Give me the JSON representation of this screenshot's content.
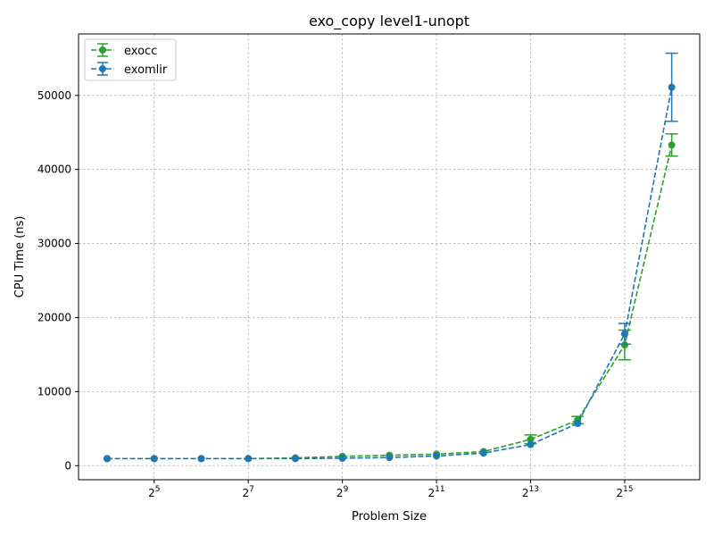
{
  "chart_data": {
    "type": "line",
    "title": "exo_copy level1-unopt",
    "xlabel": "Problem Size",
    "ylabel": "CPU Time (ns)",
    "x_scale": "log2",
    "x": [
      16,
      32,
      64,
      128,
      256,
      512,
      1024,
      2048,
      4096,
      8192,
      16384,
      32768,
      65536
    ],
    "x_ticks": [
      {
        "value": 32,
        "base": "2",
        "exp": "5"
      },
      {
        "value": 128,
        "base": "2",
        "exp": "7"
      },
      {
        "value": 512,
        "base": "2",
        "exp": "9"
      },
      {
        "value": 2048,
        "base": "2",
        "exp": "11"
      },
      {
        "value": 8192,
        "base": "2",
        "exp": "13"
      },
      {
        "value": 32768,
        "base": "2",
        "exp": "15"
      }
    ],
    "xlim": [
      10.5,
      99000
    ],
    "ylim": [
      -1900,
      58300
    ],
    "y_ticks": [
      0,
      10000,
      20000,
      30000,
      40000,
      50000
    ],
    "grid": true,
    "legend_position": "top-left",
    "series": [
      {
        "name": "exocc",
        "color": "#2ca02c",
        "values": [
          950,
          950,
          950,
          960,
          1050,
          1250,
          1400,
          1550,
          1900,
          3550,
          6150,
          16300,
          43300
        ],
        "err": [
          0,
          0,
          0,
          0,
          0,
          0,
          0,
          0,
          0,
          600,
          500,
          2000,
          1500
        ]
      },
      {
        "name": "exomlir",
        "color": "#1f77b4",
        "values": [
          950,
          950,
          950,
          950,
          950,
          1000,
          1100,
          1300,
          1700,
          2850,
          5700,
          17800,
          51100
        ],
        "err": [
          0,
          0,
          0,
          0,
          0,
          0,
          0,
          0,
          0,
          0,
          0,
          1400,
          4600
        ]
      }
    ]
  }
}
